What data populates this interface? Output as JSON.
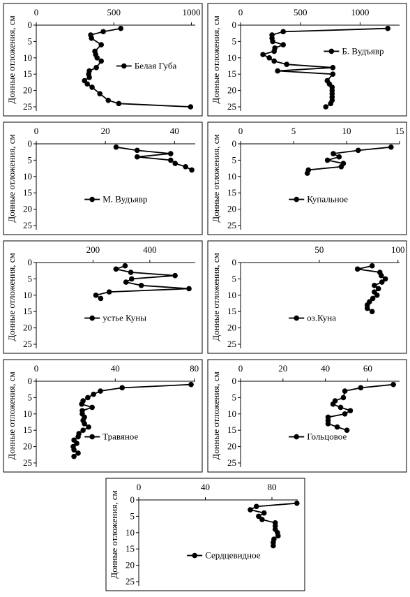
{
  "chart_data": [
    {
      "type": "line",
      "ylabel": "Донные отложения, см",
      "xlim": [
        0,
        1025
      ],
      "xticks": [
        0,
        500,
        1000
      ],
      "ylim": [
        0,
        25
      ],
      "yticks": [
        0,
        5,
        10,
        15,
        20,
        25
      ],
      "y_reversed": true,
      "legend": "center right",
      "series": [
        {
          "name": "Белая Губа",
          "color": "#000000",
          "x": [
            545,
            432,
            351,
            356,
            419,
            378,
            383,
            392,
            419,
            387,
            342,
            338,
            342,
            311,
            329,
            360,
            410,
            464,
            532,
            995
          ],
          "y": [
            1,
            2,
            3,
            4,
            6,
            8,
            9,
            10,
            11,
            13,
            14,
            15,
            16,
            17,
            18,
            19,
            21,
            23,
            24,
            25
          ]
        }
      ]
    },
    {
      "type": "line",
      "ylabel": "Донные отложения, см",
      "xlim": [
        0,
        1330
      ],
      "xticks": [
        0,
        500,
        1000
      ],
      "ylim": [
        0,
        25
      ],
      "yticks": [
        0,
        5,
        10,
        15,
        20,
        25
      ],
      "y_reversed": true,
      "legend": "upper right",
      "series": [
        {
          "name": "Б. Вудъявр",
          "color": "#000000",
          "x": [
            1232,
            357,
            263,
            263,
            269,
            357,
            287,
            281,
            187,
            240,
            281,
            386,
            772,
            310,
            772,
            725,
            743,
            766,
            766,
            766,
            766,
            766,
            754,
            713
          ],
          "y": [
            1,
            2,
            3,
            4,
            5,
            6,
            7,
            8,
            9,
            10,
            11,
            12,
            13,
            14,
            15,
            17,
            18,
            19,
            20,
            21,
            22,
            23,
            24,
            25
          ]
        }
      ]
    },
    {
      "type": "line",
      "ylabel": "Донные отложения, см",
      "xlim": [
        0,
        46
      ],
      "xticks": [
        0,
        20,
        40
      ],
      "ylim": [
        0,
        25
      ],
      "yticks": [
        0,
        5,
        10,
        15,
        20,
        25
      ],
      "y_reversed": true,
      "legend": "lower center",
      "series": [
        {
          "name": "М. Вудъявр",
          "color": "#000000",
          "x": [
            23.1,
            29.2,
            38.9,
            29.2,
            38.9,
            40.2,
            43.2,
            45
          ],
          "y": [
            1,
            2,
            3,
            4,
            5,
            6,
            7,
            8
          ]
        }
      ]
    },
    {
      "type": "line",
      "ylabel": "Донные отложения, см",
      "xlim": [
        0,
        15
      ],
      "xticks": [
        0,
        5,
        10,
        15
      ],
      "ylim": [
        0,
        25
      ],
      "yticks": [
        0,
        5,
        10,
        15,
        20,
        25
      ],
      "y_reversed": true,
      "legend": "lower center",
      "series": [
        {
          "name": "Купальное",
          "color": "#000000",
          "x": [
            14.2,
            11.1,
            8.75,
            9.3,
            8.2,
            9.7,
            9.5,
            6.4,
            6.3
          ],
          "y": [
            1,
            2,
            3,
            4,
            5,
            6,
            7,
            8,
            9
          ]
        }
      ]
    },
    {
      "type": "line",
      "ylabel": "Донные отложения, см",
      "xlim": [
        0,
        560
      ],
      "xticks": [
        200,
        400
      ],
      "ylim": [
        0,
        25
      ],
      "yticks": [
        0,
        5,
        10,
        15,
        20,
        25
      ],
      "y_reversed": true,
      "legend": "lower center",
      "series": [
        {
          "name": "устье Куны",
          "color": "#000000",
          "x": [
            313,
            281,
            333,
            489,
            336,
            316,
            370,
            538,
            257,
            210,
            227
          ],
          "y": [
            1,
            2,
            3,
            4,
            5,
            6,
            7,
            8,
            9,
            10,
            11
          ]
        }
      ]
    },
    {
      "type": "line",
      "ylabel": "Донные отложения, см",
      "xlim": [
        0,
        101
      ],
      "xticks": [
        50,
        100
      ],
      "ylim": [
        0,
        25
      ],
      "yticks": [
        0,
        5,
        10,
        15,
        20,
        25
      ],
      "y_reversed": true,
      "legend": "lower center",
      "series": [
        {
          "name": "оз.Куна",
          "color": "#000000",
          "x": [
            83.6,
            74.3,
            88.5,
            89.4,
            92,
            89.8,
            85,
            87.6,
            85,
            86.7,
            84,
            81.9,
            80.5,
            80.5,
            83.6
          ],
          "y": [
            1,
            2,
            3,
            4,
            5,
            6,
            7,
            8,
            9,
            10,
            11,
            12,
            13,
            14,
            15
          ]
        }
      ]
    },
    {
      "type": "line",
      "ylabel": "Донные отложения, см",
      "xlim": [
        0,
        80.5
      ],
      "xticks": [
        0,
        40,
        80
      ],
      "ylim": [
        0,
        25
      ],
      "yticks": [
        0,
        5,
        10,
        15,
        20,
        25
      ],
      "y_reversed": true,
      "legend": "lower center",
      "series": [
        {
          "name": "Травяное",
          "color": "#000000",
          "x": [
            78.4,
            43.5,
            32.5,
            29,
            26.1,
            23.7,
            23,
            28.3,
            23.3,
            23.3,
            24.4,
            23.7,
            24.4,
            26.5,
            23.7,
            21.6,
            21.2,
            19.1,
            20.5,
            18.7,
            19.1,
            21.2,
            19.1
          ],
          "y": [
            1,
            2,
            3,
            4,
            5,
            6,
            7,
            8,
            9,
            10,
            11,
            12,
            13,
            14,
            15,
            16,
            17,
            18,
            19,
            20,
            21,
            22,
            23
          ]
        }
      ]
    },
    {
      "type": "line",
      "ylabel": "Донные отложения, см",
      "xlim": [
        0,
        75
      ],
      "xticks": [
        0,
        20,
        40,
        60
      ],
      "ylim": [
        0,
        25
      ],
      "yticks": [
        0,
        5,
        10,
        15,
        20,
        25
      ],
      "y_reversed": true,
      "legend": "lower center",
      "series": [
        {
          "name": "Гольцовое",
          "color": "#000000",
          "x": [
            72.1,
            56.7,
            49.2,
            48.5,
            44.6,
            43.6,
            47.2,
            51.8,
            49.2,
            41.3,
            41.3,
            41.3,
            45.6,
            50.2
          ],
          "y": [
            1,
            2,
            3,
            5,
            6,
            7,
            8,
            9,
            10,
            11,
            12,
            13,
            14,
            15
          ]
        }
      ]
    },
    {
      "type": "line",
      "ylabel": "Донные отложения, см",
      "xlim": [
        0,
        95.5
      ],
      "xticks": [
        0,
        40,
        80
      ],
      "ylim": [
        0,
        25
      ],
      "yticks": [
        0,
        5,
        10,
        15,
        20,
        25
      ],
      "y_reversed": true,
      "legend": "lower center",
      "series": [
        {
          "name": "Сердцевидное",
          "color": "#000000",
          "x": [
            95,
            70.7,
            67,
            75.3,
            72,
            74.1,
            82,
            82,
            82,
            83.3,
            83.7,
            81.2,
            80.8,
            80.8
          ],
          "y": [
            1,
            2,
            3,
            4,
            5,
            6,
            7,
            8,
            9,
            10,
            11,
            12,
            13,
            14
          ]
        }
      ]
    }
  ]
}
